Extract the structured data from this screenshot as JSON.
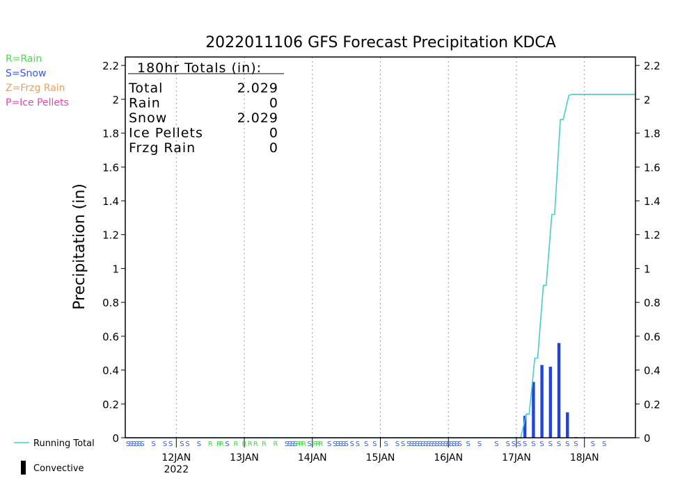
{
  "chart_data": {
    "type": "bar",
    "title": "2022011106 GFS Forecast Precipitation KDCA",
    "ylabel": "Precipitation (in)",
    "ylim": [
      0,
      2.25
    ],
    "yticks": [
      0,
      0.2,
      0.4,
      0.6,
      0.8,
      1,
      1.2,
      1.4,
      1.6,
      1.8,
      2,
      2.2
    ],
    "ytick_labels": [
      "0",
      "0.2",
      "0.4",
      "0.6",
      "0.8",
      "1",
      "1.2",
      "1.4",
      "1.6",
      "1.8",
      "2",
      "2.2"
    ],
    "xlim_hours": [
      6,
      186
    ],
    "xticks": [
      {
        "hour": 24,
        "label": "12JAN",
        "sublabel": "2022"
      },
      {
        "hour": 48,
        "label": "13JAN"
      },
      {
        "hour": 72,
        "label": "14JAN"
      },
      {
        "hour": 96,
        "label": "15JAN"
      },
      {
        "hour": 120,
        "label": "16JAN"
      },
      {
        "hour": 144,
        "label": "17JAN"
      },
      {
        "hour": 168,
        "label": "18JAN"
      }
    ],
    "type_legend": [
      {
        "label": "R=Rain",
        "color": "#44dd44"
      },
      {
        "label": "S=Snow",
        "color": "#3355ff"
      },
      {
        "label": "Z=Frzg Rain",
        "color": "#e8a060"
      },
      {
        "label": "P=Ice Pellets",
        "color": "#ee44aa"
      }
    ],
    "series_legend": [
      {
        "label": "Running Total",
        "color": "#44cccc",
        "kind": "line"
      },
      {
        "label": "Convective",
        "color": "#000000",
        "kind": "bar"
      }
    ],
    "totals": {
      "header": "180hr Totals (in):",
      "rows": [
        {
          "label": "Total",
          "value": "2.029"
        },
        {
          "label": "Rain",
          "value": "0"
        },
        {
          "label": "Snow",
          "value": "2.029"
        },
        {
          "label": "Ice Pellets",
          "value": "0"
        },
        {
          "label": "Frzg Rain",
          "value": "0"
        }
      ]
    },
    "precip_bars": {
      "color": "#2244dd",
      "hours": [
        147,
        150,
        153,
        156,
        159,
        162,
        165
      ],
      "values": [
        0.13,
        0.33,
        0.43,
        0.42,
        0.56,
        0.15,
        0.004
      ]
    },
    "running_total": {
      "color": "#44cccc",
      "hours": [
        6,
        145.5,
        147.5,
        148.5,
        150.5,
        151.5,
        153.5,
        154.5,
        156.5,
        157.5,
        159.5,
        160.5,
        162.5,
        163.5,
        186
      ],
      "values": [
        0,
        0,
        0.14,
        0.14,
        0.47,
        0.47,
        0.9,
        0.9,
        1.32,
        1.32,
        1.88,
        1.88,
        2.023,
        2.029,
        2.029
      ]
    },
    "type_markers": [
      {
        "hour": 7,
        "type": "S"
      },
      {
        "hour": 8,
        "type": "S"
      },
      {
        "hour": 9,
        "type": "S"
      },
      {
        "hour": 10,
        "type": "S"
      },
      {
        "hour": 11,
        "type": "S"
      },
      {
        "hour": 12,
        "type": "S"
      },
      {
        "hour": 16,
        "type": "S"
      },
      {
        "hour": 20,
        "type": "S"
      },
      {
        "hour": 22,
        "type": "S"
      },
      {
        "hour": 26,
        "type": "S"
      },
      {
        "hour": 28,
        "type": "S"
      },
      {
        "hour": 32,
        "type": "S"
      },
      {
        "hour": 36,
        "type": "R"
      },
      {
        "hour": 39,
        "type": "R"
      },
      {
        "hour": 40,
        "type": "R"
      },
      {
        "hour": 42,
        "type": "S"
      },
      {
        "hour": 45,
        "type": "R"
      },
      {
        "hour": 48,
        "type": "R"
      },
      {
        "hour": 50,
        "type": "R"
      },
      {
        "hour": 52,
        "type": "R"
      },
      {
        "hour": 55,
        "type": "R"
      },
      {
        "hour": 59,
        "type": "R"
      },
      {
        "hour": 63,
        "type": "S"
      },
      {
        "hour": 64,
        "type": "S"
      },
      {
        "hour": 65,
        "type": "S"
      },
      {
        "hour": 66,
        "type": "S"
      },
      {
        "hour": 67,
        "type": "R"
      },
      {
        "hour": 68,
        "type": "R"
      },
      {
        "hour": 69,
        "type": "R"
      },
      {
        "hour": 71,
        "type": "S"
      },
      {
        "hour": 73,
        "type": "R"
      },
      {
        "hour": 74,
        "type": "R"
      },
      {
        "hour": 75,
        "type": "R"
      },
      {
        "hour": 78,
        "type": "S"
      },
      {
        "hour": 80,
        "type": "S"
      },
      {
        "hour": 81,
        "type": "S"
      },
      {
        "hour": 82,
        "type": "S"
      },
      {
        "hour": 83,
        "type": "S"
      },
      {
        "hour": 84,
        "type": "S"
      },
      {
        "hour": 86,
        "type": "S"
      },
      {
        "hour": 88,
        "type": "S"
      },
      {
        "hour": 91,
        "type": "S"
      },
      {
        "hour": 94,
        "type": "S"
      },
      {
        "hour": 98,
        "type": "S"
      },
      {
        "hour": 102,
        "type": "S"
      },
      {
        "hour": 104,
        "type": "S"
      },
      {
        "hour": 106,
        "type": "S"
      },
      {
        "hour": 107,
        "type": "S"
      },
      {
        "hour": 108,
        "type": "S"
      },
      {
        "hour": 109,
        "type": "S"
      },
      {
        "hour": 110,
        "type": "S"
      },
      {
        "hour": 111,
        "type": "S"
      },
      {
        "hour": 112,
        "type": "S"
      },
      {
        "hour": 113,
        "type": "S"
      },
      {
        "hour": 114,
        "type": "S"
      },
      {
        "hour": 115,
        "type": "S"
      },
      {
        "hour": 116,
        "type": "S"
      },
      {
        "hour": 117,
        "type": "S"
      },
      {
        "hour": 118,
        "type": "S"
      },
      {
        "hour": 119,
        "type": "S"
      },
      {
        "hour": 120,
        "type": "S"
      },
      {
        "hour": 121,
        "type": "S"
      },
      {
        "hour": 122,
        "type": "S"
      },
      {
        "hour": 123,
        "type": "S"
      },
      {
        "hour": 124,
        "type": "S"
      },
      {
        "hour": 127,
        "type": "S"
      },
      {
        "hour": 131,
        "type": "S"
      },
      {
        "hour": 137,
        "type": "S"
      },
      {
        "hour": 141,
        "type": "S"
      },
      {
        "hour": 143,
        "type": "S"
      },
      {
        "hour": 145,
        "type": "S"
      },
      {
        "hour": 147,
        "type": "S"
      },
      {
        "hour": 150,
        "type": "S"
      },
      {
        "hour": 153,
        "type": "S"
      },
      {
        "hour": 156,
        "type": "S"
      },
      {
        "hour": 159,
        "type": "S"
      },
      {
        "hour": 162,
        "type": "S"
      },
      {
        "hour": 165,
        "type": "S"
      },
      {
        "hour": 171,
        "type": "S"
      },
      {
        "hour": 175,
        "type": "S"
      }
    ],
    "type_colors": {
      "R": "#44dd44",
      "S": "#3355ff",
      "Z": "#e8a060",
      "P": "#ee44aa"
    },
    "grid": {
      "vertical": true,
      "horizontal": false
    }
  }
}
